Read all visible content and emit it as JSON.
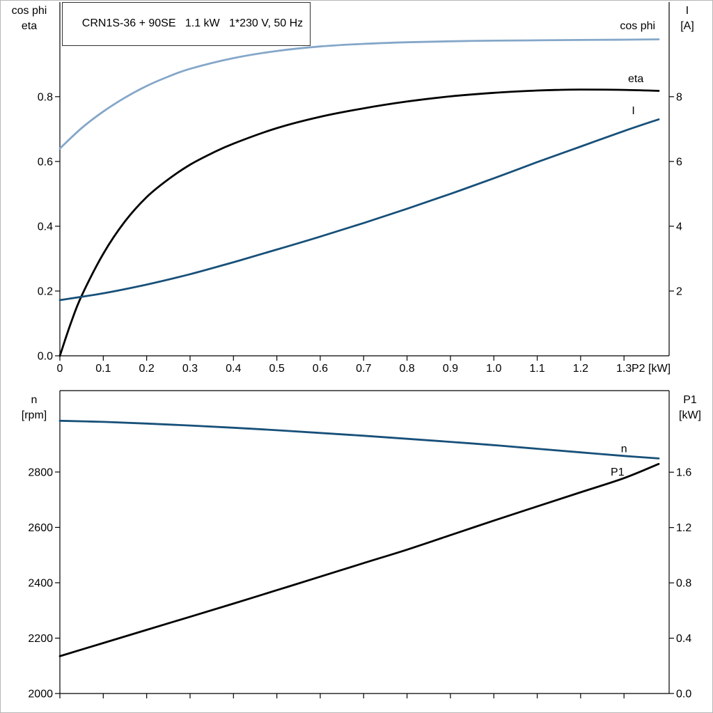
{
  "page": {
    "background": "#ffffff",
    "border_color": "#b6b6b6"
  },
  "title_box": {
    "text": "CRN1S-36 + 90SE   1.1 kW   1*230 V, 50 Hz"
  },
  "colors": {
    "black": "#000000",
    "dark_blue": "#175079",
    "light_blue": "#84a7c9",
    "axis": "#000000"
  },
  "chart_data": [
    {
      "type": "line",
      "title": "CRN1S-36 + 90SE   1.1 kW   1*230 V, 50 Hz",
      "x_axis": {
        "label": "P2 [kW]",
        "min": 0,
        "max": 1.404,
        "ticks": [
          [
            0,
            "0"
          ],
          [
            0.1,
            "0.1"
          ],
          [
            0.2,
            "0.2"
          ],
          [
            0.3,
            "0.3"
          ],
          [
            0.4,
            "0.4"
          ],
          [
            0.5,
            "0.5"
          ],
          [
            0.6,
            "0.6"
          ],
          [
            0.7,
            "0.7"
          ],
          [
            0.8,
            "0.8"
          ],
          [
            0.9,
            "0.9"
          ],
          [
            1.0,
            "1.0"
          ],
          [
            1.1,
            "1.1"
          ],
          [
            1.2,
            "1.2"
          ],
          [
            1.3,
            "1.3"
          ]
        ]
      },
      "y_left": {
        "title_lines": [
          "cos phi",
          "eta"
        ],
        "min": 0,
        "max": 1.092,
        "ticks": [
          [
            0,
            "0.0"
          ],
          [
            0.2,
            "0.2"
          ],
          [
            0.4,
            "0.4"
          ],
          [
            0.6,
            "0.6"
          ],
          [
            0.8,
            "0.8"
          ]
        ]
      },
      "y_right": {
        "title_lines": [
          "I",
          "[A]"
        ],
        "min": 0,
        "max": 10.92,
        "ticks": [
          [
            2,
            "2"
          ],
          [
            4,
            "4"
          ],
          [
            6,
            "6"
          ],
          [
            8,
            "8"
          ]
        ]
      },
      "series": [
        {
          "name": "cos phi",
          "axis": "left",
          "color": "light_blue",
          "points": [
            [
              0,
              0.64
            ],
            [
              0.05,
              0.703
            ],
            [
              0.1,
              0.754
            ],
            [
              0.15,
              0.797
            ],
            [
              0.2,
              0.833
            ],
            [
              0.25,
              0.862
            ],
            [
              0.3,
              0.886
            ],
            [
              0.4,
              0.919
            ],
            [
              0.5,
              0.941
            ],
            [
              0.6,
              0.955
            ],
            [
              0.7,
              0.963
            ],
            [
              0.8,
              0.968
            ],
            [
              0.9,
              0.971
            ],
            [
              1.0,
              0.973
            ],
            [
              1.1,
              0.974
            ],
            [
              1.2,
              0.975
            ],
            [
              1.3,
              0.976
            ],
            [
              1.38,
              0.977
            ]
          ],
          "label": {
            "text": "cos phi",
            "x": 1.372,
            "y": 1.008,
            "anchor": "end"
          }
        },
        {
          "name": "eta",
          "axis": "left",
          "color": "black",
          "points": [
            [
              0,
              0
            ],
            [
              0.025,
              0.1
            ],
            [
              0.05,
              0.185
            ],
            [
              0.1,
              0.315
            ],
            [
              0.15,
              0.415
            ],
            [
              0.2,
              0.49
            ],
            [
              0.25,
              0.545
            ],
            [
              0.3,
              0.59
            ],
            [
              0.35,
              0.625
            ],
            [
              0.4,
              0.655
            ],
            [
              0.5,
              0.703
            ],
            [
              0.6,
              0.738
            ],
            [
              0.7,
              0.764
            ],
            [
              0.8,
              0.785
            ],
            [
              0.9,
              0.801
            ],
            [
              1.0,
              0.812
            ],
            [
              1.1,
              0.819
            ],
            [
              1.15,
              0.821
            ],
            [
              1.2,
              0.822
            ],
            [
              1.3,
              0.821
            ],
            [
              1.38,
              0.818
            ]
          ],
          "label": {
            "text": "eta",
            "x": 1.345,
            "y": 0.845,
            "anchor": "end"
          }
        },
        {
          "name": "I",
          "axis": "right",
          "color": "dark_blue",
          "points": [
            [
              0,
              1.72
            ],
            [
              0.1,
              1.93
            ],
            [
              0.2,
              2.2
            ],
            [
              0.3,
              2.52
            ],
            [
              0.4,
              2.89
            ],
            [
              0.5,
              3.28
            ],
            [
              0.6,
              3.68
            ],
            [
              0.7,
              4.1
            ],
            [
              0.8,
              4.54
            ],
            [
              0.9,
              5.0
            ],
            [
              1.0,
              5.48
            ],
            [
              1.1,
              5.98
            ],
            [
              1.2,
              6.46
            ],
            [
              1.3,
              6.94
            ],
            [
              1.38,
              7.3
            ]
          ],
          "label": {
            "text": "I",
            "x": 1.318,
            "y": 7.46,
            "anchor": "start"
          }
        }
      ]
    },
    {
      "type": "line",
      "title": "",
      "x_axis": {
        "label": "",
        "min": 0,
        "max": 1.404,
        "ticks": [
          [
            0
          ],
          [
            0.1
          ],
          [
            0.2
          ],
          [
            0.3
          ],
          [
            0.4
          ],
          [
            0.5
          ],
          [
            0.6
          ],
          [
            0.7
          ],
          [
            0.8
          ],
          [
            0.9
          ],
          [
            1.0
          ],
          [
            1.1
          ],
          [
            1.2
          ],
          [
            1.3
          ]
        ]
      },
      "y_left": {
        "title_lines": [
          "n",
          "[rpm]"
        ],
        "min": 2000,
        "max": 3094,
        "ticks": [
          [
            2000,
            "2000"
          ],
          [
            2200,
            "2200"
          ],
          [
            2400,
            "2400"
          ],
          [
            2600,
            "2600"
          ],
          [
            2800,
            "2800"
          ]
        ]
      },
      "y_right": {
        "title_lines": [
          "P1",
          "[kW]"
        ],
        "min": 0,
        "max": 2.19,
        "ticks": [
          [
            0,
            "0.0"
          ],
          [
            0.4,
            "0.4"
          ],
          [
            0.8,
            "0.8"
          ],
          [
            1.2,
            "1.2"
          ],
          [
            1.6,
            "1.6"
          ]
        ]
      },
      "series": [
        {
          "name": "n",
          "axis": "left",
          "color": "dark_blue",
          "points": [
            [
              0,
              2985
            ],
            [
              0.1,
              2981
            ],
            [
              0.2,
              2975
            ],
            [
              0.3,
              2968
            ],
            [
              0.4,
              2960
            ],
            [
              0.5,
              2951
            ],
            [
              0.6,
              2941
            ],
            [
              0.7,
              2931
            ],
            [
              0.8,
              2920
            ],
            [
              0.9,
              2909
            ],
            [
              1.0,
              2897
            ],
            [
              1.1,
              2884
            ],
            [
              1.2,
              2871
            ],
            [
              1.3,
              2858
            ],
            [
              1.38,
              2849
            ]
          ],
          "label": {
            "text": "n",
            "x": 1.3,
            "y": 2872,
            "anchor": "middle"
          }
        },
        {
          "name": "P1",
          "axis": "right",
          "color": "black",
          "points": [
            [
              0,
              0.27
            ],
            [
              0.1,
              0.365
            ],
            [
              0.2,
              0.46
            ],
            [
              0.3,
              0.555
            ],
            [
              0.4,
              0.65
            ],
            [
              0.5,
              0.747
            ],
            [
              0.6,
              0.845
            ],
            [
              0.7,
              0.943
            ],
            [
              0.8,
              1.04
            ],
            [
              0.9,
              1.145
            ],
            [
              1.0,
              1.25
            ],
            [
              1.1,
              1.353
            ],
            [
              1.2,
              1.455
            ],
            [
              1.3,
              1.557
            ],
            [
              1.38,
              1.66
            ]
          ],
          "label": {
            "text": "P1",
            "x": 1.285,
            "y": 1.575,
            "anchor": "middle"
          }
        }
      ]
    }
  ]
}
